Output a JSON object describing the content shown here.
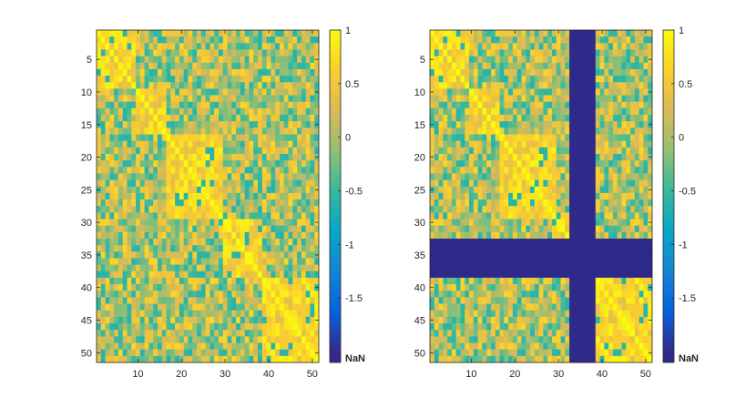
{
  "chart_data": [
    {
      "type": "heatmap",
      "name": "correlation-matrix-full",
      "title": "",
      "xlabel": "",
      "ylabel": "",
      "matrix_size": 51,
      "x_ticks": [
        "10",
        "20",
        "30",
        "40",
        "50"
      ],
      "y_ticks": [
        "5",
        "10",
        "15",
        "20",
        "25",
        "30",
        "35",
        "40",
        "45",
        "50"
      ],
      "x_tick_values": [
        10,
        20,
        30,
        40,
        50
      ],
      "y_tick_values": [
        5,
        10,
        15,
        20,
        25,
        30,
        35,
        40,
        45,
        50
      ],
      "value_range": [
        -2,
        1
      ],
      "nan_indices": [],
      "colorbar": {
        "ticks": [
          "1",
          "0.5",
          "0",
          "-0.5",
          "-1",
          "-1.5"
        ],
        "tick_values": [
          1,
          0.5,
          0,
          -0.5,
          -1,
          -1.5
        ],
        "nan_label": "NaN",
        "nan_color": "#2f2a8a"
      },
      "blocks": [
        [
          1,
          9
        ],
        [
          10,
          16
        ],
        [
          17,
          29
        ],
        [
          30,
          38
        ],
        [
          39,
          51
        ]
      ]
    },
    {
      "type": "heatmap",
      "name": "correlation-matrix-masked",
      "title": "",
      "xlabel": "",
      "ylabel": "",
      "matrix_size": 51,
      "x_ticks": [
        "10",
        "20",
        "30",
        "40",
        "50"
      ],
      "y_ticks": [
        "5",
        "10",
        "15",
        "20",
        "25",
        "30",
        "35",
        "40",
        "45",
        "50"
      ],
      "x_tick_values": [
        10,
        20,
        30,
        40,
        50
      ],
      "y_tick_values": [
        5,
        10,
        15,
        20,
        25,
        30,
        35,
        40,
        45,
        50
      ],
      "value_range": [
        -2,
        1
      ],
      "nan_indices": [
        33,
        34,
        35,
        36,
        37,
        38
      ],
      "colorbar": {
        "ticks": [
          "1",
          "0.5",
          "0",
          "-0.5",
          "-1",
          "-1.5"
        ],
        "tick_values": [
          1,
          0.5,
          0,
          -0.5,
          -1,
          -1.5
        ],
        "nan_label": "NaN",
        "nan_color": "#2f2a8a"
      },
      "blocks": [
        [
          1,
          9
        ],
        [
          10,
          16
        ],
        [
          17,
          29
        ],
        [
          30,
          32
        ],
        [
          39,
          51
        ]
      ]
    }
  ],
  "colors": {
    "axis": "#262626",
    "nan": "#2f2a8a",
    "colormap_stops": [
      "#352a87",
      "#0363e1",
      "#1485d4",
      "#06a7c6",
      "#38b99e",
      "#92bf73",
      "#d9ba56",
      "#fcce2e",
      "#f9fb0e"
    ]
  }
}
